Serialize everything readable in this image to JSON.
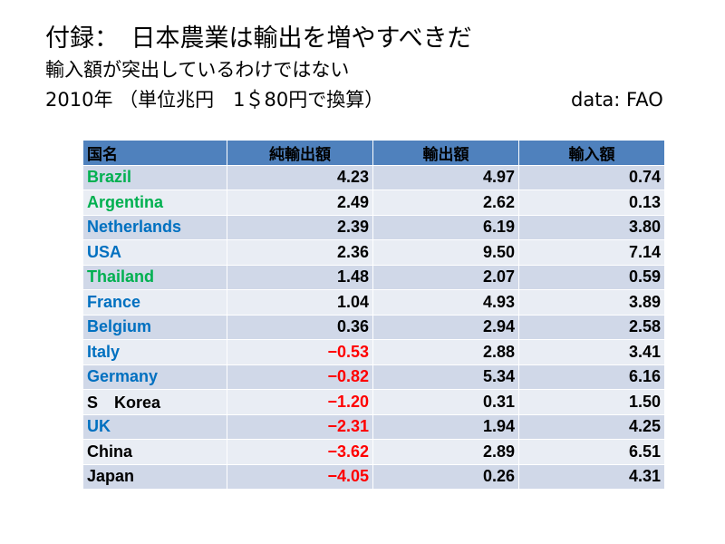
{
  "title": "付録：　日本農業は輸出を増やすべきだ",
  "subtitle": "輸入額が突出しているわけではない",
  "note": "2010年 （単位兆円　1＄80円で換算）",
  "source": "data: FAO",
  "colors": {
    "header_bg": "#4f81bd",
    "row_bg": "#d0d8e8",
    "row_alt_bg": "#e9edf4",
    "green": "#00b050",
    "blue": "#0070c0",
    "red": "#ff0000",
    "black": "#000000"
  },
  "table": {
    "headers": [
      "国名",
      "純輸出額",
      "輸出額",
      "輸入額"
    ],
    "rows": [
      {
        "country": "Brazil",
        "country_color": "green",
        "net": "4.23",
        "net_color": "black",
        "exports": "4.97",
        "imports": "0.74"
      },
      {
        "country": "Argentina",
        "country_color": "green",
        "net": "2.49",
        "net_color": "black",
        "exports": "2.62",
        "imports": "0.13"
      },
      {
        "country": "Netherlands",
        "country_color": "blue",
        "net": "2.39",
        "net_color": "black",
        "exports": "6.19",
        "imports": "3.80"
      },
      {
        "country": "USA",
        "country_color": "blue",
        "net": "2.36",
        "net_color": "black",
        "exports": "9.50",
        "imports": "7.14"
      },
      {
        "country": "Thailand",
        "country_color": "green",
        "net": "1.48",
        "net_color": "black",
        "exports": "2.07",
        "imports": "0.59"
      },
      {
        "country": "France",
        "country_color": "blue",
        "net": "1.04",
        "net_color": "black",
        "exports": "4.93",
        "imports": "3.89"
      },
      {
        "country": "Belgium",
        "country_color": "blue",
        "net": "0.36",
        "net_color": "black",
        "exports": "2.94",
        "imports": "2.58"
      },
      {
        "country": "Italy",
        "country_color": "blue",
        "net": "−0.53",
        "net_color": "red",
        "exports": "2.88",
        "imports": "3.41"
      },
      {
        "country": "Germany",
        "country_color": "blue",
        "net": "−0.82",
        "net_color": "red",
        "exports": "5.34",
        "imports": "6.16"
      },
      {
        "country": "S　Korea",
        "country_color": "black",
        "net": "−1.20",
        "net_color": "red",
        "exports": "0.31",
        "imports": "1.50"
      },
      {
        "country": "UK",
        "country_color": "blue",
        "net": "−2.31",
        "net_color": "red",
        "exports": "1.94",
        "imports": "4.25"
      },
      {
        "country": "China",
        "country_color": "black",
        "net": "−3.62",
        "net_color": "red",
        "exports": "2.89",
        "imports": "6.51"
      },
      {
        "country": "Japan",
        "country_color": "black",
        "net": "−4.05",
        "net_color": "red",
        "exports": "0.26",
        "imports": "4.31"
      }
    ]
  }
}
